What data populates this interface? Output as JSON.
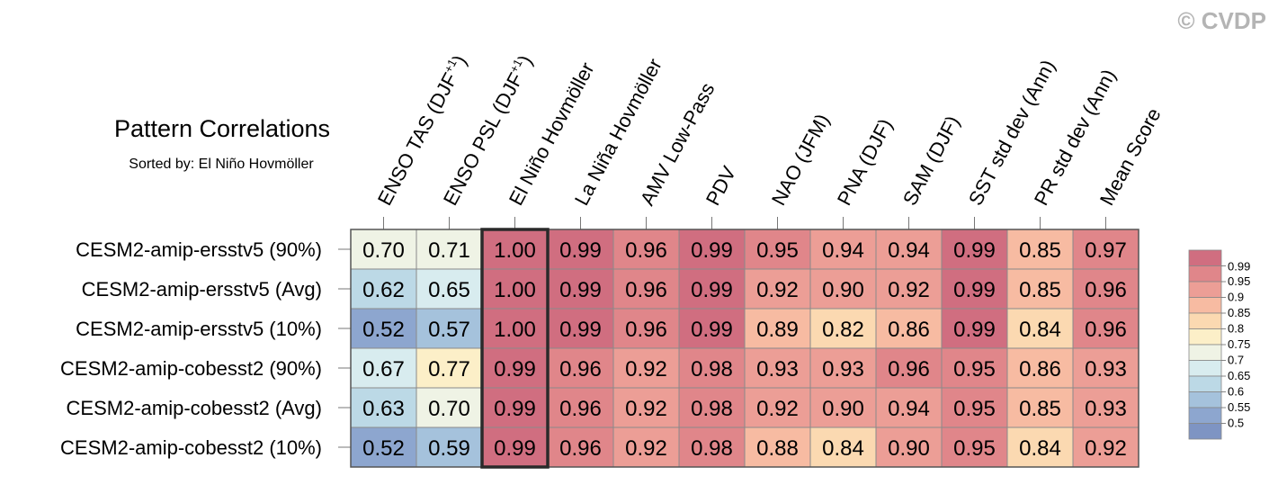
{
  "chart_data": {
    "type": "heatmap",
    "title": "Pattern Correlations",
    "subtitle": "Sorted by: El Niño Hovmöller",
    "watermark": "© CVDP",
    "columns": [
      {
        "label": "ENSO TAS (DJF",
        "sup": "+1",
        "suffix": ")"
      },
      {
        "label": "ENSO PSL (DJF",
        "sup": "+1",
        "suffix": ")"
      },
      {
        "label": "El Niño Hovmöller"
      },
      {
        "label": "La Niña Hovmöller"
      },
      {
        "label": "AMV Low-Pass"
      },
      {
        "label": "PDV"
      },
      {
        "label": "NAO (JFM)"
      },
      {
        "label": "PNA (DJF)"
      },
      {
        "label": "SAM (DJF)"
      },
      {
        "label": "SST std dev (Ann)"
      },
      {
        "label": "PR std dev (Ann)"
      },
      {
        "label": "Mean Score"
      }
    ],
    "rows": [
      "CESM2-amip-ersstv5 (90%)",
      "CESM2-amip-ersstv5 (Avg)",
      "CESM2-amip-ersstv5 (10%)",
      "CESM2-amip-cobesst2 (90%)",
      "CESM2-amip-cobesst2 (Avg)",
      "CESM2-amip-cobesst2 (10%)"
    ],
    "values": [
      [
        "0.70",
        "0.71",
        "1.00",
        "0.99",
        "0.96",
        "0.99",
        "0.95",
        "0.94",
        "0.94",
        "0.99",
        "0.85",
        "0.97"
      ],
      [
        "0.62",
        "0.65",
        "1.00",
        "0.99",
        "0.96",
        "0.99",
        "0.92",
        "0.90",
        "0.92",
        "0.99",
        "0.85",
        "0.96"
      ],
      [
        "0.52",
        "0.57",
        "1.00",
        "0.99",
        "0.96",
        "0.99",
        "0.89",
        "0.82",
        "0.86",
        "0.99",
        "0.84",
        "0.96"
      ],
      [
        "0.67",
        "0.77",
        "0.99",
        "0.96",
        "0.92",
        "0.98",
        "0.93",
        "0.93",
        "0.96",
        "0.95",
        "0.86",
        "0.93"
      ],
      [
        "0.63",
        "0.70",
        "0.99",
        "0.96",
        "0.92",
        "0.98",
        "0.92",
        "0.90",
        "0.94",
        "0.95",
        "0.85",
        "0.93"
      ],
      [
        "0.52",
        "0.59",
        "0.99",
        "0.96",
        "0.92",
        "0.98",
        "0.88",
        "0.84",
        "0.90",
        "0.95",
        "0.84",
        "0.92"
      ]
    ],
    "highlight_column": 2,
    "legend": {
      "placement": "right",
      "labels": [
        "0.99",
        "0.95",
        "0.9",
        "0.85",
        "0.8",
        "0.75",
        "0.7",
        "0.65",
        "0.6",
        "0.55",
        "0.5"
      ],
      "colors": [
        "#d06e80",
        "#e0868a",
        "#ec9e96",
        "#f7bba2",
        "#fbd9b1",
        "#fcefc8",
        "#eff3e5",
        "#d8ecef",
        "#bcd9e6",
        "#a5c2dc",
        "#8da6cf",
        "#7e94c3"
      ]
    }
  }
}
